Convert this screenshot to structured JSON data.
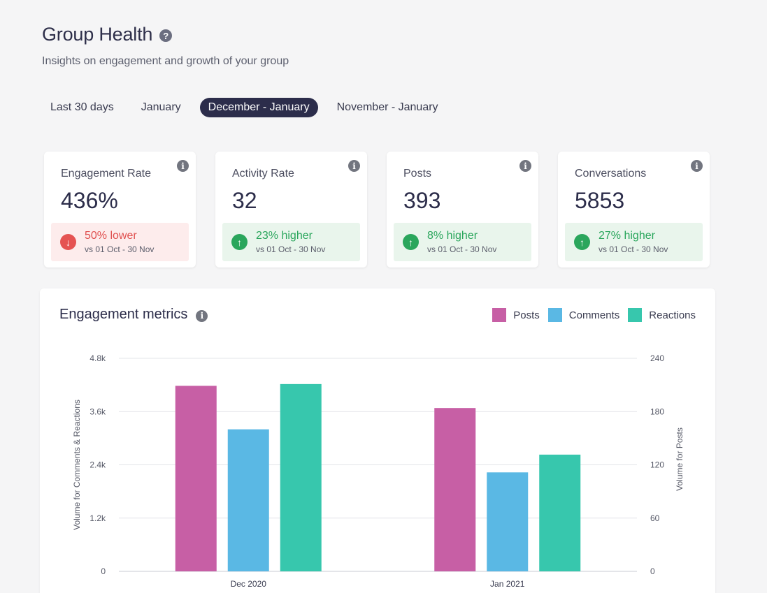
{
  "header": {
    "title": "Group Health",
    "help_icon": "question-circle-icon",
    "subtitle": "Insights on engagement and growth of your group"
  },
  "date_ranges": {
    "items": [
      "Last 30 days",
      "January",
      "December - January",
      "November - January"
    ],
    "active": "December - January"
  },
  "stats": [
    {
      "label": "Engagement Rate",
      "value": "436%",
      "trend": "down",
      "delta": "50% lower",
      "comparison": "vs 01 Oct - 30 Nov"
    },
    {
      "label": "Activity Rate",
      "value": "32",
      "trend": "up",
      "delta": "23% higher",
      "comparison": "vs 01 Oct - 30 Nov"
    },
    {
      "label": "Posts",
      "value": "393",
      "trend": "up",
      "delta": "8% higher",
      "comparison": "vs 01 Oct - 30 Nov"
    },
    {
      "label": "Conversations",
      "value": "5853",
      "trend": "up",
      "delta": "27% higher",
      "comparison": "vs 01 Oct - 30 Nov"
    }
  ],
  "colors": {
    "posts": "#c75fa5",
    "comments": "#5ab8e4",
    "reactions": "#37c7ad",
    "down": "#e0504f",
    "up": "#2aa65c",
    "active_tab": "#2c2d4b"
  },
  "chart_data": {
    "type": "bar",
    "title": "Engagement metrics",
    "categories": [
      "Dec 2020",
      "Jan 2021"
    ],
    "series": [
      {
        "name": "Posts",
        "axis": "right",
        "values": [
          209,
          184
        ]
      },
      {
        "name": "Comments",
        "axis": "left",
        "values": [
          3200,
          2230
        ]
      },
      {
        "name": "Reactions",
        "axis": "left",
        "values": [
          4220,
          2630
        ]
      }
    ],
    "left_axis": {
      "label": "Volume for Comments & Reactions",
      "ticks": [
        "0",
        "1.2k",
        "2.4k",
        "3.6k",
        "4.8k"
      ],
      "max": 4800
    },
    "right_axis": {
      "label": "Volume for Posts",
      "ticks": [
        "0",
        "60",
        "120",
        "180",
        "240"
      ],
      "max": 240
    },
    "legend_position": "top-right"
  }
}
